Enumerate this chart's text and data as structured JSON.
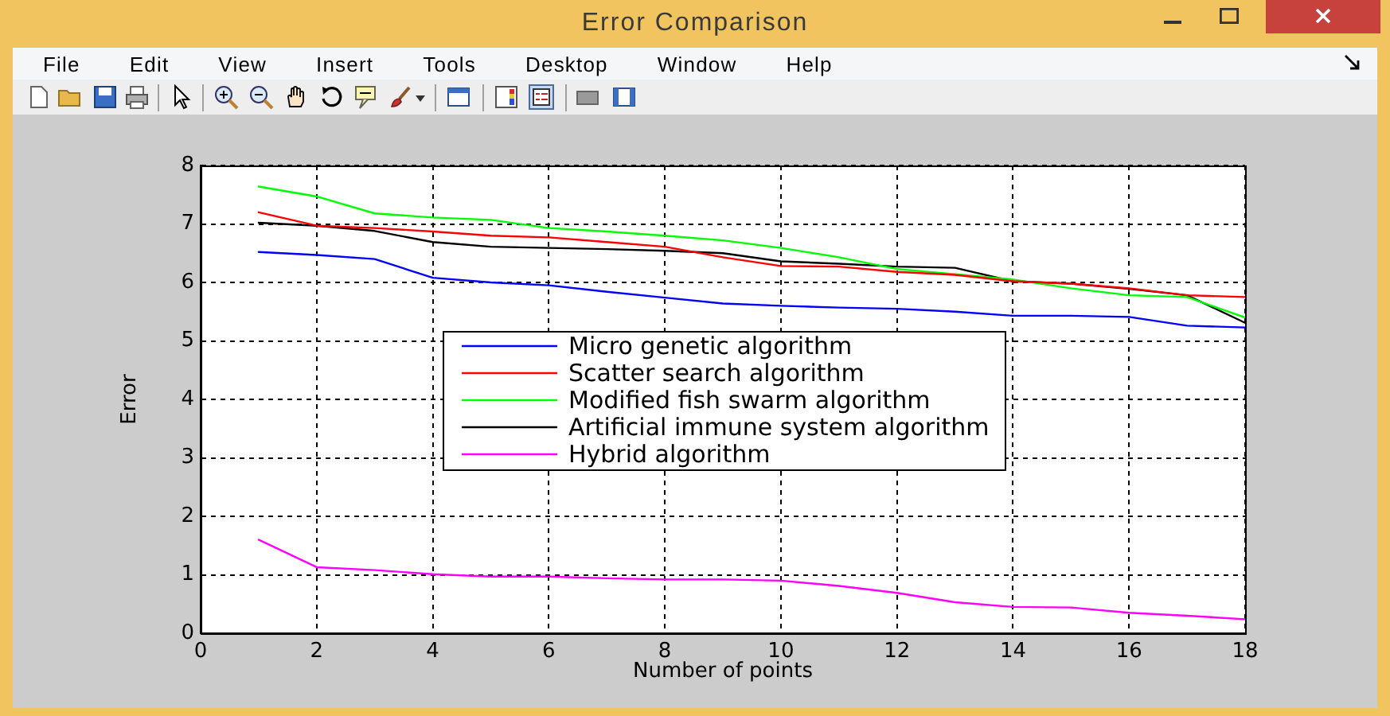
{
  "chart_data": {
    "type": "line",
    "title": "Error Comparison",
    "xlabel": "Number of points",
    "ylabel": "Error",
    "x": [
      1,
      2,
      3,
      4,
      5,
      6,
      7,
      8,
      9,
      10,
      11,
      12,
      13,
      14,
      15,
      16,
      17,
      18
    ],
    "series": [
      {
        "name": "Micro genetic algorithm",
        "color": "#0000ff",
        "values": [
          6.52,
          6.47,
          6.4,
          6.08,
          6.0,
          5.95,
          5.84,
          5.74,
          5.64,
          5.6,
          5.57,
          5.55,
          5.5,
          5.43,
          5.43,
          5.41,
          5.26,
          5.23
        ]
      },
      {
        "name": "Scatter search algorithm",
        "color": "#ff0000",
        "values": [
          7.2,
          6.97,
          6.93,
          6.87,
          6.8,
          6.77,
          6.69,
          6.61,
          6.43,
          6.28,
          6.27,
          6.18,
          6.13,
          6.02,
          5.98,
          5.9,
          5.78,
          5.75
        ]
      },
      {
        "name": "Modified fish swarm algorithm",
        "color": "#00ff00",
        "values": [
          7.64,
          7.47,
          7.18,
          7.11,
          7.07,
          6.93,
          6.87,
          6.8,
          6.72,
          6.59,
          6.43,
          6.23,
          6.14,
          6.05,
          5.9,
          5.78,
          5.75,
          5.4
        ]
      },
      {
        "name": "Artificial immune system algorithm",
        "color": "#000000",
        "values": [
          7.02,
          6.97,
          6.88,
          6.69,
          6.61,
          6.59,
          6.57,
          6.54,
          6.5,
          6.36,
          6.32,
          6.27,
          6.25,
          6.02,
          5.98,
          5.89,
          5.78,
          5.31
        ]
      },
      {
        "name": "Hybrid algorithm",
        "color": "#ff00ff",
        "values": [
          1.6,
          1.13,
          1.08,
          1.01,
          0.97,
          0.97,
          0.94,
          0.92,
          0.92,
          0.9,
          0.81,
          0.69,
          0.53,
          0.45,
          0.44,
          0.35,
          0.3,
          0.24
        ]
      }
    ],
    "xlim": [
      0,
      18
    ],
    "xticks": [
      0,
      2,
      4,
      6,
      8,
      10,
      12,
      14,
      16,
      18
    ],
    "ylim": [
      0,
      8
    ],
    "yticks": [
      0,
      1,
      2,
      3,
      4,
      5,
      6,
      7,
      8
    ],
    "grid": true,
    "legend": "center",
    "line_style": "solid",
    "annotations": [
      "File",
      "Edit",
      "View",
      "Insert",
      "Tools",
      "Desktop",
      "Window",
      "Help"
    ]
  }
}
